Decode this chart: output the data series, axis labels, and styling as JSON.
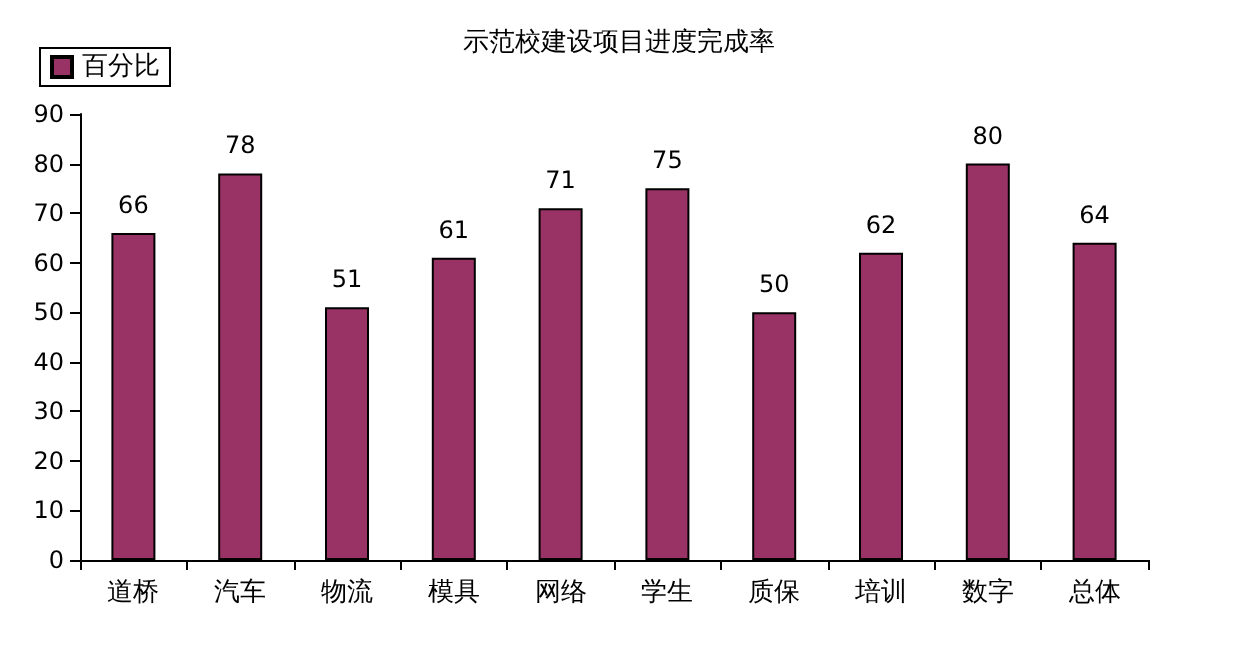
{
  "chart_data": {
    "type": "bar",
    "title": "示范校建设项目进度完成率",
    "categories": [
      "道桥",
      "汽车",
      "物流",
      "模具",
      "网络",
      "学生",
      "质保",
      "培训",
      "数字",
      "总体"
    ],
    "series": [
      {
        "name": "百分比",
        "color": "#993366",
        "values": [
          66,
          78,
          51,
          61,
          71,
          75,
          50,
          62,
          80,
          64
        ]
      }
    ],
    "ylim": [
      0,
      90
    ],
    "yticks": [
      0,
      10,
      20,
      30,
      40,
      50,
      60,
      70,
      80,
      90
    ],
    "data_labels": true,
    "legend": "top left",
    "grid": false
  }
}
